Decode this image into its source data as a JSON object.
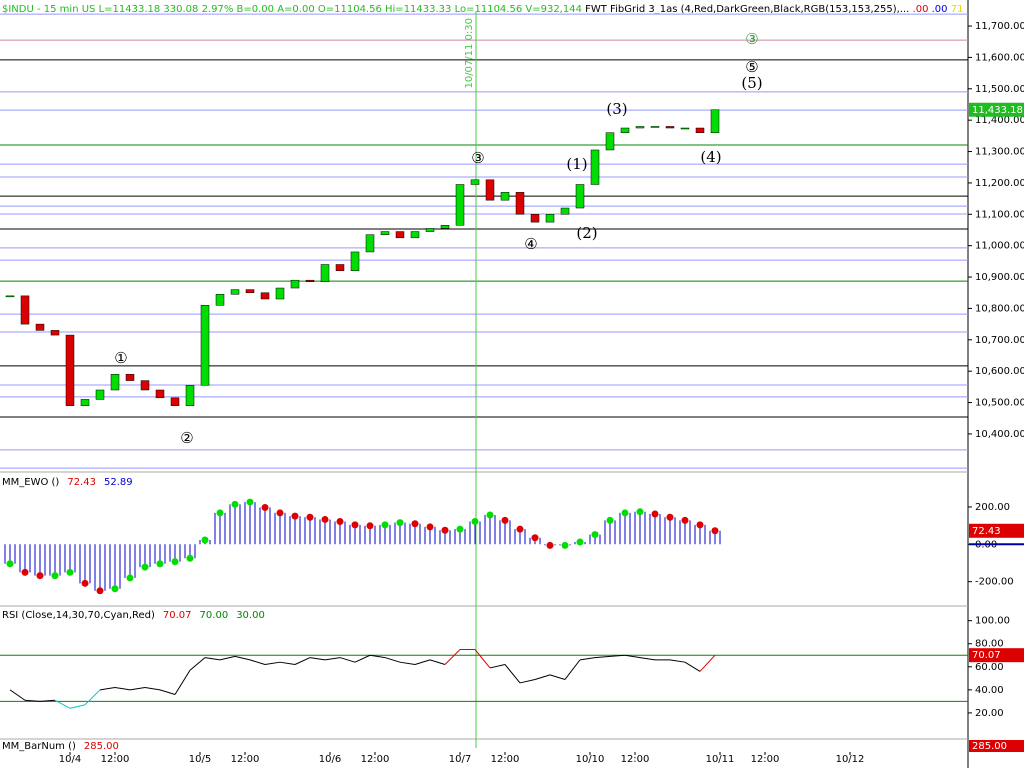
{
  "header": [
    {
      "text": "$INDU - 15 min  US  L=11433.18  330.08  2.97%  B=0.00  A=0.00  O=11104.56  Hi=11433.33  Lo=11104.56  V=932,144",
      "color": "#22bb22"
    },
    {
      "text": "  FWT FibGrid 3_1as (4,Red,DarkGreen,Black,RGB(153,153,255),...",
      "color": "#000000"
    },
    {
      "text": "  .00",
      "color": "#dd0000"
    },
    {
      "text": "  .00",
      "color": "#0000dd"
    },
    {
      "text": "  71",
      "color": "#e0e000"
    }
  ],
  "chart_data": [
    {
      "type": "candlestick",
      "up_color": "#00dd00",
      "down_color": "#dd0000",
      "x": [
        2,
        5,
        8,
        11,
        14,
        17,
        20,
        23,
        26,
        29,
        32,
        35,
        38,
        41,
        44,
        47,
        50,
        53,
        56,
        59,
        62,
        65,
        68,
        71,
        74,
        77,
        80,
        83,
        86,
        89,
        92,
        95,
        98,
        101,
        104,
        107,
        110,
        113,
        116,
        119,
        122,
        125,
        128,
        131,
        134,
        137,
        140,
        143
      ],
      "values": [
        10840,
        10750,
        10730,
        10715,
        10490,
        10510,
        10540,
        10590,
        10570,
        10540,
        10515,
        10490,
        10555,
        10810,
        10845,
        10860,
        10850,
        10830,
        10865,
        10890,
        10885,
        10940,
        10920,
        10980,
        11035,
        11045,
        11025,
        11045,
        11055,
        11065,
        11195,
        11210,
        11145,
        11170,
        11100,
        11075,
        11100,
        11120,
        11195,
        11305,
        11360,
        11375,
        11380,
        11380,
        11375,
        11375,
        11360,
        11433.18
      ],
      "xlim": [
        0,
        193.6
      ],
      "ylim": [
        10285,
        11783
      ],
      "yticks": [
        {
          "value": 11700,
          "label": "11,700.00"
        },
        {
          "value": 11600,
          "label": "11,600.00"
        },
        {
          "value": 11500,
          "label": "11,500.00"
        },
        {
          "value": 11400,
          "label": "11,400.00"
        },
        {
          "value": 11300,
          "label": "11,300.00"
        },
        {
          "value": 11200,
          "label": "11,200.00"
        },
        {
          "value": 11100,
          "label": "11,100.00"
        },
        {
          "value": 11000,
          "label": "11,000.00"
        },
        {
          "value": 10900,
          "label": "10,900.00"
        },
        {
          "value": 10800,
          "label": "10,800.00"
        },
        {
          "value": 10700,
          "label": "10,700.00"
        },
        {
          "value": 10600,
          "label": "10,600.00"
        },
        {
          "value": 10500,
          "label": "10,500.00"
        },
        {
          "value": 10400,
          "label": "10,400.00"
        }
      ],
      "xticks": [
        {
          "value": 14,
          "label": "10/4"
        },
        {
          "value": 23,
          "label": "12:00"
        },
        {
          "value": 40,
          "label": "10/5"
        },
        {
          "value": 49,
          "label": "12:00"
        },
        {
          "value": 66,
          "label": "10/6"
        },
        {
          "value": 75,
          "label": "12:00"
        },
        {
          "value": 92,
          "label": "10/7"
        },
        {
          "value": 101,
          "label": "12:00"
        },
        {
          "value": 118,
          "label": "10/10"
        },
        {
          "value": 127,
          "label": "12:00"
        },
        {
          "value": 144,
          "label": "10/11"
        },
        {
          "value": 153,
          "label": "12:00"
        },
        {
          "value": 170,
          "label": "10/12"
        }
      ],
      "levels": [
        {
          "value": 11738,
          "color": "#9999ff"
        },
        {
          "value": 11655,
          "color": "#cc88aa"
        },
        {
          "value": 11592,
          "color": "#000000"
        },
        {
          "value": 11490,
          "color": "#9999ff"
        },
        {
          "value": 11432,
          "color": "#9999ff"
        },
        {
          "value": 11321,
          "color": "#008800"
        },
        {
          "value": 11260,
          "color": "#9999ff"
        },
        {
          "value": 11219,
          "color": "#9999ff"
        },
        {
          "value": 11158,
          "color": "#000000"
        },
        {
          "value": 11126,
          "color": "#9999ff"
        },
        {
          "value": 11101,
          "color": "#9999ff"
        },
        {
          "value": 11053,
          "color": "#000000"
        },
        {
          "value": 10993,
          "color": "#9999ff"
        },
        {
          "value": 10954,
          "color": "#9999ff"
        },
        {
          "value": 10887,
          "color": "#008800"
        },
        {
          "value": 10782,
          "color": "#9999ff"
        },
        {
          "value": 10725,
          "color": "#9999ff"
        },
        {
          "value": 10617,
          "color": "#000000"
        },
        {
          "value": 10556,
          "color": "#9999ff"
        },
        {
          "value": 10518,
          "color": "#9999ff"
        },
        {
          "value": 10454,
          "color": "#000000"
        },
        {
          "value": 10349,
          "color": "#9999ff"
        },
        {
          "value": 10291,
          "color": "#9999ff"
        }
      ],
      "vline": {
        "x": 95.2,
        "label": "10/07/11 0:30",
        "color": "#44cc44"
      },
      "annotations": [
        {
          "text": "③",
          "x": 150.4,
          "y": 11655,
          "color": "#339933"
        },
        {
          "text": "⑤",
          "x": 150.4,
          "y": 11566,
          "color": "#000000"
        },
        {
          "text": "(5)",
          "x": 150.4,
          "y": 11515,
          "color": "#000000"
        },
        {
          "text": "(3)",
          "x": 123.4,
          "y": 11432,
          "color": "#000000"
        },
        {
          "text": "(4)",
          "x": 142.2,
          "y": 11279,
          "color": "#000000"
        },
        {
          "text": "③",
          "x": 95.6,
          "y": 11276,
          "color": "#000000"
        },
        {
          "text": "(1)",
          "x": 115.4,
          "y": 11257,
          "color": "#000000"
        },
        {
          "text": "(2)",
          "x": 117.4,
          "y": 11037,
          "color": "#000000"
        },
        {
          "text": "④",
          "x": 106.2,
          "y": 11002,
          "color": "#000000"
        },
        {
          "text": "①",
          "x": 24.2,
          "y": 10639,
          "color": "#000000"
        },
        {
          "text": "②",
          "x": 37.4,
          "y": 10384,
          "color": "#000000"
        }
      ],
      "last": {
        "value": 11433.18,
        "label": "11,433.18",
        "color": "#22bb22"
      }
    },
    {
      "type": "dot-histogram",
      "title": "MM_EWO ()",
      "readouts": [
        {
          "text": "72.43",
          "color": "#dd0000"
        },
        {
          "text": "52.89",
          "color": "#0000dd"
        }
      ],
      "hist_color": "#0000cc",
      "up_color": "#00dd00",
      "down_color": "#dd0000",
      "x": [
        2,
        5,
        8,
        11,
        14,
        17,
        20,
        23,
        26,
        29,
        32,
        35,
        38,
        41,
        44,
        47,
        50,
        53,
        56,
        59,
        62,
        65,
        68,
        71,
        74,
        77,
        80,
        83,
        86,
        89,
        92,
        95,
        98,
        101,
        104,
        107,
        110,
        113,
        116,
        119,
        122,
        125,
        128,
        131,
        134,
        137,
        140,
        143
      ],
      "values": [
        -104,
        -150,
        -168,
        -168,
        -150,
        -209,
        -249,
        -238,
        -180,
        -122,
        -104,
        -93,
        -75,
        23,
        168,
        214,
        226,
        197,
        168,
        151,
        145,
        133,
        122,
        104,
        99,
        104,
        116,
        110,
        93,
        75,
        81,
        122,
        157,
        128,
        81,
        35,
        -6,
        -6,
        12,
        52,
        128,
        168,
        174,
        162,
        145,
        128,
        104,
        72.43
      ],
      "xlim": [
        0,
        193.6
      ],
      "ylim": [
        -325,
        371
      ],
      "yticks": [
        {
          "value": 200,
          "label": "200.00"
        },
        {
          "value": 0,
          "label": "0.00"
        },
        {
          "value": -200,
          "label": "-200.00"
        }
      ],
      "last": {
        "value": 72.43,
        "label": "72.43",
        "color": "#dd0000"
      }
    },
    {
      "type": "line",
      "title": "RSI (Close,14,30,70,Cyan,Red)",
      "readouts": [
        {
          "text": "70.07",
          "color": "#dd0000"
        },
        {
          "text": "70.00",
          "color": "#008800"
        },
        {
          "text": "30.00",
          "color": "#008800"
        }
      ],
      "color": "#000000",
      "high_color": "#dd0000",
      "low_color": "#00cccc",
      "levels": [
        70,
        30
      ],
      "level_color": "#008800",
      "x": [
        2,
        5,
        8,
        11,
        14,
        17,
        20,
        23,
        26,
        29,
        32,
        35,
        38,
        41,
        44,
        47,
        50,
        53,
        56,
        59,
        62,
        65,
        68,
        71,
        74,
        77,
        80,
        83,
        86,
        89,
        92,
        95,
        98,
        101,
        104,
        107,
        110,
        113,
        116,
        119,
        122,
        125,
        128,
        131,
        134,
        137,
        140,
        143
      ],
      "values": [
        40,
        31,
        30,
        31,
        24,
        27,
        40,
        42,
        40,
        42,
        40,
        36,
        57,
        68,
        66,
        69,
        66,
        62,
        64,
        62,
        68,
        66,
        68,
        64,
        70,
        68,
        64,
        62,
        66,
        62,
        75,
        75,
        59,
        62,
        46,
        49,
        53,
        49,
        66,
        68,
        69,
        70,
        68,
        66,
        66,
        64,
        56,
        70.07
      ],
      "xlim": [
        0,
        193.6
      ],
      "ylim": [
        -3.5,
        111
      ],
      "yticks": [
        {
          "value": 100,
          "label": "100.00"
        },
        {
          "value": 80,
          "label": "80.00"
        },
        {
          "value": 60,
          "label": "60.00"
        },
        {
          "value": 40,
          "label": "40.00"
        },
        {
          "value": 20,
          "label": "20.00"
        }
      ],
      "last": {
        "value": 70.07,
        "label": "70.07",
        "color": "#dd0000"
      }
    },
    {
      "type": "counter",
      "title": "MM_BarNum ()",
      "readouts": [
        {
          "text": "285.00",
          "color": "#dd0000"
        }
      ],
      "value": 285,
      "value_label": "285.00",
      "color": "#dd0000"
    }
  ]
}
